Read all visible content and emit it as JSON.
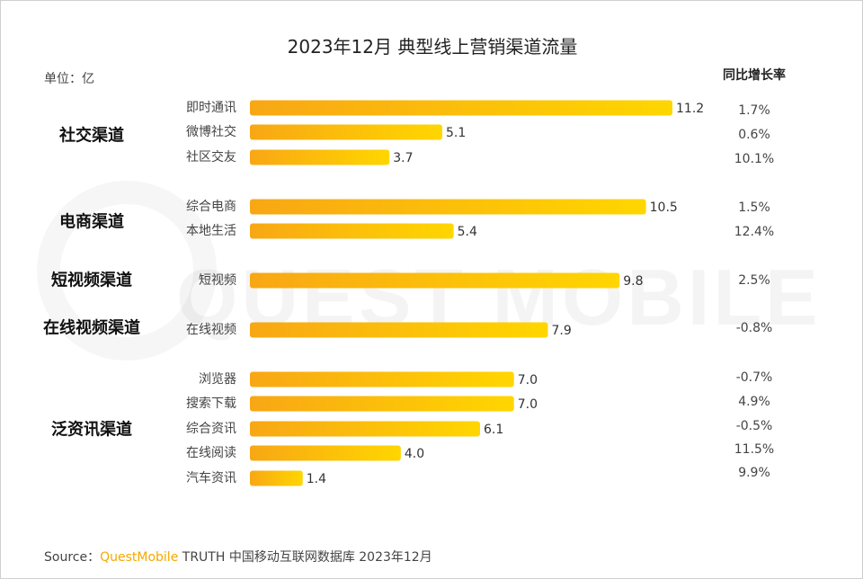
{
  "unit_label": "单位：亿",
  "yoy_header": "同比增长率",
  "source": {
    "prefix": "Source：",
    "brand": "QuestMobile",
    "suffix": " TRUTH 中国移动互联网数据库 2023年12月"
  },
  "watermark": "QUEST MOBILE",
  "colors": {
    "bar_start": "#f8a714",
    "bar_end": "#ffd600",
    "brand": "#f5a800"
  },
  "chart_data": {
    "type": "bar",
    "orientation": "horizontal",
    "title": "2023年12月 典型线上营销渠道流量",
    "unit": "亿",
    "xlim": [
      0,
      11.2
    ],
    "groups": [
      {
        "name": "社交渠道",
        "items": [
          {
            "category": "即时通讯",
            "value": 11.2,
            "value_label": "11.2",
            "yoy": "1.7%"
          },
          {
            "category": "微博社交",
            "value": 5.1,
            "value_label": "5.1",
            "yoy": "0.6%"
          },
          {
            "category": "社区交友",
            "value": 3.7,
            "value_label": "3.7",
            "yoy": "10.1%"
          }
        ]
      },
      {
        "name": "电商渠道",
        "items": [
          {
            "category": "综合电商",
            "value": 10.5,
            "value_label": "10.5",
            "yoy": "1.5%"
          },
          {
            "category": "本地生活",
            "value": 5.4,
            "value_label": "5.4",
            "yoy": "12.4%"
          }
        ]
      },
      {
        "name": "短视频渠道",
        "items": [
          {
            "category": "短视频",
            "value": 9.8,
            "value_label": "9.8",
            "yoy": "2.5%"
          }
        ]
      },
      {
        "name": "在线视频渠道",
        "items": [
          {
            "category": "在线视频",
            "value": 7.9,
            "value_label": "7.9",
            "yoy": "-0.8%"
          }
        ]
      },
      {
        "name": "泛资讯渠道",
        "items": [
          {
            "category": "浏览器",
            "value": 7.0,
            "value_label": "7.0",
            "yoy": "-0.7%"
          },
          {
            "category": "搜索下载",
            "value": 7.0,
            "value_label": "7.0",
            "yoy": "4.9%"
          },
          {
            "category": "综合资讯",
            "value": 6.1,
            "value_label": "6.1",
            "yoy": "-0.5%"
          },
          {
            "category": "在线阅读",
            "value": 4.0,
            "value_label": "4.0",
            "yoy": "11.5%"
          },
          {
            "category": "汽车资讯",
            "value": 1.4,
            "value_label": "1.4",
            "yoy": "9.9%"
          }
        ]
      }
    ]
  }
}
